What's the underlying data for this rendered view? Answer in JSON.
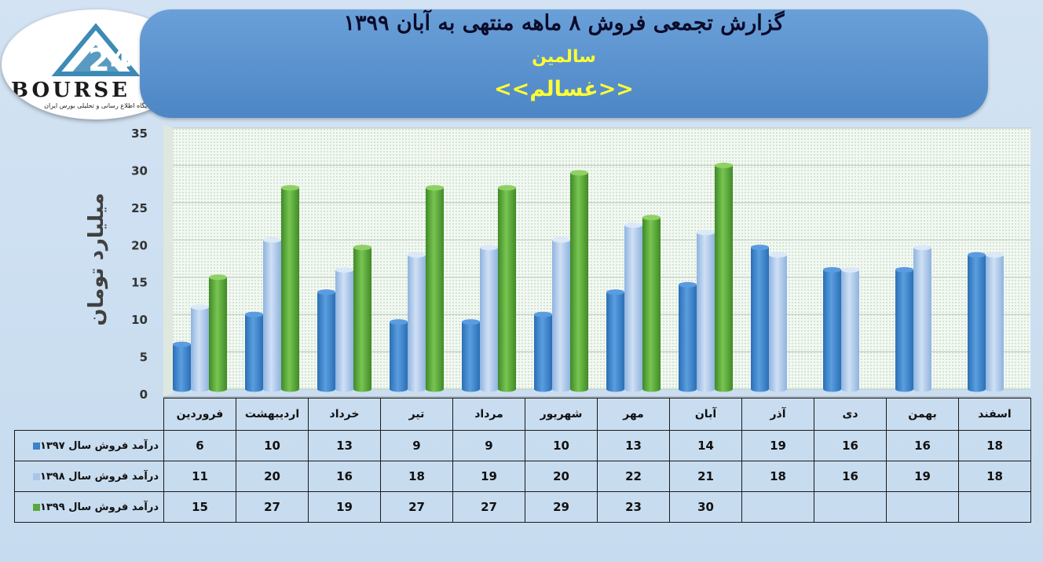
{
  "header": {
    "title": "گزارش تجمعی فروش ۸ ماهه منتهی به آبان ۱۳۹۹",
    "company": "سالمین",
    "symbol": "<<غسالم>>"
  },
  "logo": {
    "text": "BOURSE",
    "subtitle": "پایگاه اطلاع رسانی و تحلیلی بورس ایران"
  },
  "colors": {
    "s1397": "#3b82c8",
    "s1398": "#a9c6e8",
    "s1399": "#5aa83a"
  },
  "chart_data": {
    "type": "bar",
    "ylabel": "میلیارد تومان",
    "ylim": [
      0,
      35
    ],
    "yticks": [
      0,
      5,
      10,
      15,
      20,
      25,
      30,
      35
    ],
    "categories": [
      "فروردین",
      "اردیبهشت",
      "خرداد",
      "تیر",
      "مرداد",
      "شهریور",
      "مهر",
      "آبان",
      "آذر",
      "دی",
      "بهمن",
      "اسفند"
    ],
    "series": [
      {
        "name": "درآمد فروش سال ۱۳۹۷",
        "values": [
          6,
          10,
          13,
          9,
          9,
          10,
          13,
          14,
          19,
          16,
          16,
          18
        ]
      },
      {
        "name": "درآمد فروش سال ۱۳۹۸",
        "values": [
          11,
          20,
          16,
          18,
          19,
          20,
          22,
          21,
          18,
          16,
          19,
          18
        ]
      },
      {
        "name": "درآمد فروش سال ۱۳۹۹",
        "values": [
          15,
          27,
          19,
          27,
          27,
          29,
          23,
          30,
          null,
          null,
          null,
          null
        ]
      }
    ],
    "grid": true
  }
}
